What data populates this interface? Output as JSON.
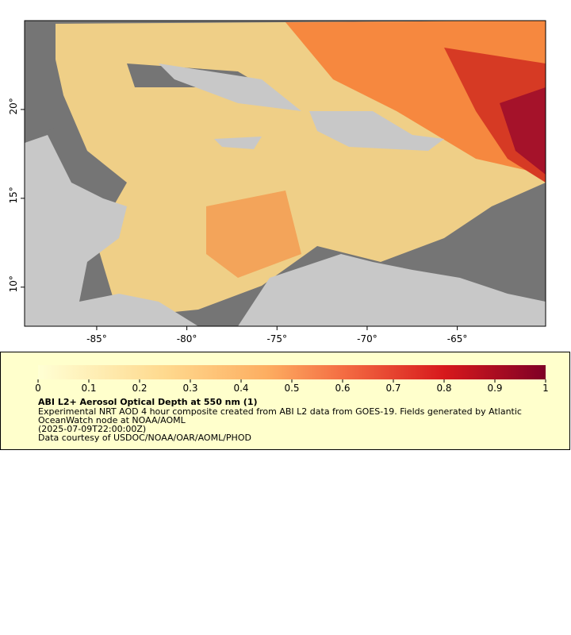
{
  "map": {
    "xlim": [
      -89,
      -60.1
    ],
    "ylim": [
      7.8,
      25
    ],
    "xticks": [
      {
        "value": -85,
        "label": "-85°"
      },
      {
        "value": -80,
        "label": "-80°"
      },
      {
        "value": -75,
        "label": "-75°"
      },
      {
        "value": -70,
        "label": "-70°"
      },
      {
        "value": -65,
        "label": "-65°"
      }
    ],
    "yticks": [
      {
        "value": 10,
        "label": "10°"
      },
      {
        "value": 15,
        "label": "15°"
      },
      {
        "value": 20,
        "label": "20°"
      }
    ]
  },
  "colorbar": {
    "lim": [
      0,
      1
    ],
    "ticks": [
      0,
      0.1,
      0.2,
      0.3,
      0.4,
      0.5,
      0.6,
      0.7,
      0.8,
      0.9,
      1
    ]
  },
  "caption": {
    "title": "ABI L2+ Aerosol Optical Depth at 550 nm (1)",
    "lines": [
      "Experimental NRT AOD 4 hour composite created from ABI L2 data from GOES-19. Fields generated by Atlantic",
      "OceanWatch node at NOAA/AOML",
      "(2025-07-09T22:00:00Z)",
      "Data courtesy of USDOC/NOAA/OAR/AOML/PHOD"
    ]
  }
}
